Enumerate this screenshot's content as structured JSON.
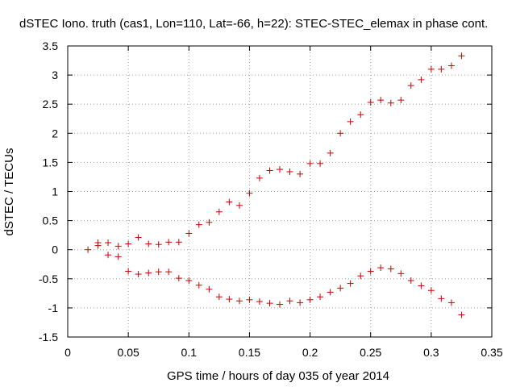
{
  "chart_data": {
    "type": "scatter",
    "title": "dSTEC Iono. truth (cas1, Lon=110, Lat=-66, h=22): STEC-STEC_elemax in phase cont.",
    "xlabel": "GPS time / hours of day 035 of year 2014",
    "ylabel": "dSTEC  / TECUs",
    "xlim": [
      0,
      0.35
    ],
    "ylim": [
      -1.5,
      3.5
    ],
    "xticks": [
      "0",
      "0.05",
      "0.1",
      "0.15",
      "0.2",
      "0.25",
      "0.3",
      "0.35"
    ],
    "yticks": [
      "-1.5",
      "-1",
      "-0.5",
      "0",
      "0.5",
      "1",
      "1.5",
      "2",
      "2.5",
      "3",
      "3.5"
    ],
    "grid": true,
    "marker": "+",
    "color": "#cc0000",
    "series": [
      {
        "x": [
          0.0167,
          0.025,
          0.025,
          0.0333,
          0.0417,
          0.05,
          0.0583,
          0.0667,
          0.075,
          0.0833,
          0.0917,
          0.1,
          0.1083,
          0.1167,
          0.125,
          0.1333,
          0.1417,
          0.15,
          0.1583,
          0.1667,
          0.175,
          0.1833,
          0.1917,
          0.2,
          0.2083,
          0.2167,
          0.225,
          0.2333,
          0.2417,
          0.25,
          0.2583,
          0.2667,
          0.275,
          0.2833,
          0.2917,
          0.3,
          0.3083,
          0.3167,
          0.325
        ],
        "y": [
          0.0,
          0.07,
          0.12,
          0.12,
          0.06,
          0.1,
          0.21,
          0.1,
          0.09,
          0.13,
          0.13,
          0.28,
          0.43,
          0.47,
          0.65,
          0.82,
          0.76,
          0.97,
          1.23,
          1.36,
          1.38,
          1.34,
          1.3,
          1.48,
          1.48,
          1.66,
          2.0,
          2.2,
          2.32,
          2.53,
          2.57,
          2.52,
          2.57,
          2.82,
          2.92,
          3.1,
          3.1,
          3.16,
          3.33
        ]
      },
      {
        "x": [
          0.0333,
          0.0417,
          0.05,
          0.0583,
          0.0667,
          0.075,
          0.0833,
          0.0917,
          0.1,
          0.1083,
          0.1167,
          0.125,
          0.1333,
          0.1417,
          0.15,
          0.1583,
          0.1667,
          0.175,
          0.1833,
          0.1917,
          0.2,
          0.2083,
          0.2167,
          0.225,
          0.2333,
          0.2417,
          0.25,
          0.2583,
          0.2667,
          0.275,
          0.2833,
          0.2917,
          0.3,
          0.3083,
          0.3167,
          0.325
        ],
        "y": [
          -0.09,
          -0.12,
          -0.37,
          -0.42,
          -0.4,
          -0.38,
          -0.38,
          -0.49,
          -0.53,
          -0.61,
          -0.68,
          -0.81,
          -0.85,
          -0.88,
          -0.86,
          -0.89,
          -0.92,
          -0.94,
          -0.88,
          -0.91,
          -0.86,
          -0.81,
          -0.73,
          -0.66,
          -0.58,
          -0.45,
          -0.37,
          -0.31,
          -0.33,
          -0.41,
          -0.53,
          -0.62,
          -0.7,
          -0.84,
          -0.91,
          -1.12
        ]
      }
    ]
  }
}
